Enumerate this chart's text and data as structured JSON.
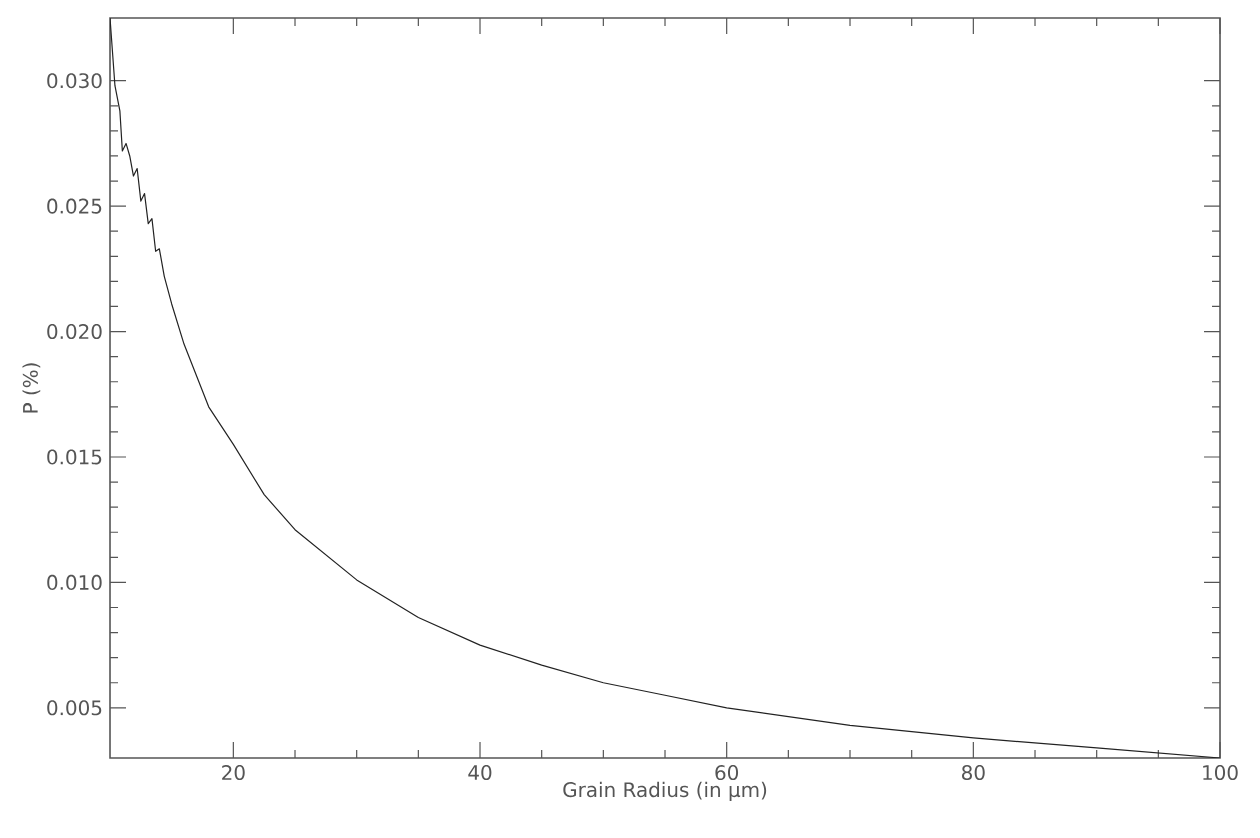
{
  "chart_data": {
    "type": "line",
    "xlabel": "Grain Radius (in μm)",
    "ylabel": "P (%)",
    "xlim": [
      10,
      100
    ],
    "xticks": [
      20,
      40,
      60,
      80,
      100
    ],
    "ylim": [
      0.003,
      0.0325
    ],
    "yticks": [
      {
        "value": 0.005,
        "label": "0.005"
      },
      {
        "value": 0.01,
        "label": "0.010"
      },
      {
        "value": 0.015,
        "label": "0.015"
      },
      {
        "value": 0.02,
        "label": "0.020"
      },
      {
        "value": 0.025,
        "label": "0.025"
      },
      {
        "value": 0.03,
        "label": "0.030"
      }
    ],
    "grid": false,
    "marker": "none",
    "line_style": "solid",
    "series": [
      {
        "color": "#222222",
        "x": [
          10.0,
          10.4,
          10.8,
          11.0,
          11.3,
          11.6,
          11.9,
          12.2,
          12.5,
          12.8,
          13.1,
          13.4,
          13.7,
          14.0,
          14.4,
          15,
          16,
          18,
          20,
          22.5,
          25,
          30,
          35,
          40,
          45,
          50,
          55,
          60,
          70,
          80,
          90,
          100
        ],
        "values": [
          0.0325,
          0.0298,
          0.0288,
          0.0272,
          0.0275,
          0.027,
          0.0262,
          0.0265,
          0.0252,
          0.0255,
          0.0243,
          0.0245,
          0.0232,
          0.0233,
          0.0222,
          0.0211,
          0.0195,
          0.017,
          0.0155,
          0.0135,
          0.0121,
          0.0101,
          0.0086,
          0.0075,
          0.0067,
          0.006,
          0.0055,
          0.005,
          0.0043,
          0.0038,
          0.0034,
          0.003
        ]
      }
    ]
  }
}
